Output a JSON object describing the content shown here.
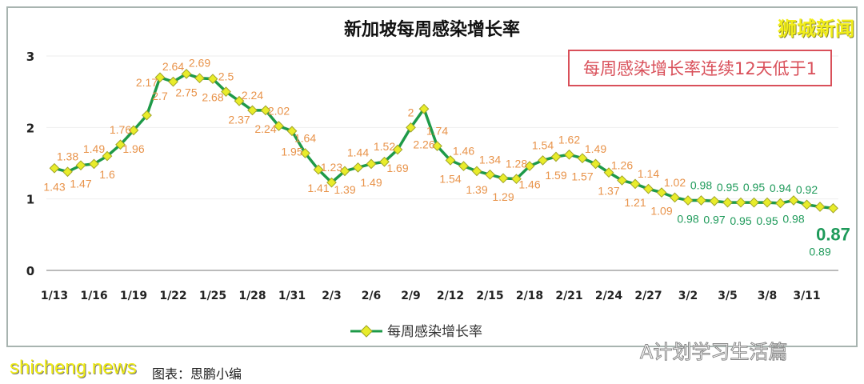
{
  "watermarks": {
    "top_right": "狮城新闻",
    "site": "shicheng.news",
    "wechat": "A计划学习生活篇",
    "credit": "图表：思鹏小编"
  },
  "annotation": "每周感染增长率连续12天低于1",
  "colors": {
    "line": "#1e9a48",
    "marker": "#e8ec2a",
    "label_above_1": "#e8934a",
    "label_below_1": "#1e9a5a",
    "annotation": "#d9505a"
  },
  "chart_data": {
    "type": "line",
    "title": "新加坡每周感染增长率",
    "xlabel": "",
    "ylabel": "",
    "ylim": [
      0,
      3
    ],
    "yticks": [
      "0",
      "1",
      "2",
      "3"
    ],
    "grid": true,
    "legend": "bottom",
    "x": [
      "1/13",
      "1/14",
      "1/15",
      "1/16",
      "1/17",
      "1/18",
      "1/19",
      "1/20",
      "1/21",
      "1/22",
      "1/23",
      "1/24",
      "1/25",
      "1/26",
      "1/27",
      "1/28",
      "1/29",
      "1/30",
      "1/31",
      "2/1",
      "2/2",
      "2/3",
      "2/4",
      "2/5",
      "2/6",
      "2/7",
      "2/8",
      "2/9",
      "2/10",
      "2/11",
      "2/12",
      "2/13",
      "2/14",
      "2/15",
      "2/16",
      "2/17",
      "2/18",
      "2/19",
      "2/20",
      "2/21",
      "2/22",
      "2/23",
      "2/24",
      "2/25",
      "2/26",
      "2/27",
      "2/28",
      "3/1",
      "3/2",
      "3/3",
      "3/4",
      "3/5",
      "3/6",
      "3/7",
      "3/8",
      "3/9",
      "3/10",
      "3/11",
      "3/12",
      "3/13"
    ],
    "xtick_labels": [
      "1/13",
      "1/16",
      "1/19",
      "1/22",
      "1/25",
      "1/28",
      "1/31",
      "2/3",
      "2/6",
      "2/9",
      "2/12",
      "2/15",
      "2/18",
      "2/21",
      "2/24",
      "2/27",
      "3/2",
      "3/5",
      "3/8",
      "3/11"
    ],
    "series": [
      {
        "name": "每周感染增长率",
        "values": [
          1.43,
          1.38,
          1.47,
          1.49,
          1.6,
          1.76,
          1.96,
          2.17,
          2.7,
          2.64,
          2.75,
          2.69,
          2.68,
          2.5,
          2.37,
          2.24,
          2.24,
          2.02,
          1.95,
          1.64,
          1.41,
          1.23,
          1.39,
          1.44,
          1.49,
          1.52,
          1.69,
          2,
          2.26,
          1.74,
          1.54,
          1.46,
          1.39,
          1.34,
          1.29,
          1.28,
          1.46,
          1.54,
          1.59,
          1.62,
          1.57,
          1.49,
          1.37,
          1.26,
          1.21,
          1.14,
          1.09,
          1.02,
          0.98,
          0.98,
          0.97,
          0.95,
          0.95,
          0.95,
          0.95,
          0.94,
          0.98,
          0.92,
          0.89,
          0.87
        ]
      }
    ]
  }
}
